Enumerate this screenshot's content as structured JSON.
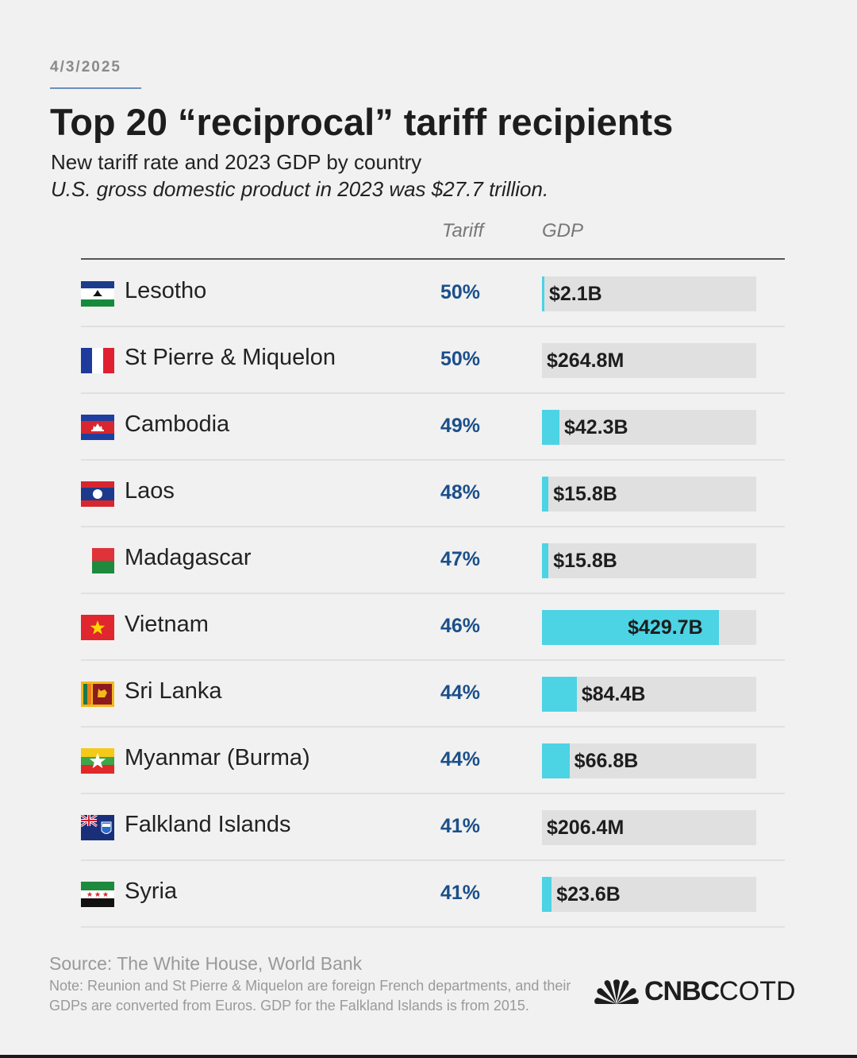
{
  "date": "4/3/2025",
  "title": "Top 20 “reciprocal” tariff recipients",
  "subtitle": "New tariff rate and 2023 GDP by country",
  "subtitle_italic": "U.S. gross domestic product in 2023 was $27.7 trillion.",
  "columns": {
    "tariff": "Tariff",
    "gdp": "GDP"
  },
  "source": "Source: The White House, World Bank",
  "note": "Note: Reunion and St Pierre & Miquelon are foreign French departments, and their GDPs are converted from Euros. GDP for the Falkland Islands is from 2015.",
  "logo": {
    "cnbc": "CNBC",
    "cotd": "COTD"
  },
  "colors": {
    "bar": "#4cd3e4",
    "track": "#e0e0e0",
    "tariff_text": "#1b4f8a"
  },
  "chart_data": {
    "type": "table",
    "bar_scale_max_billions": 520,
    "rows": [
      {
        "country": "Lesotho",
        "flag": "lesotho-flag",
        "tariff": "50%",
        "tariff_value": 50,
        "gdp": "$2.1B",
        "gdp_billions": 2.1
      },
      {
        "country": "St Pierre & Miquelon",
        "flag": "france-flag",
        "tariff": "50%",
        "tariff_value": 50,
        "gdp": "$264.8M",
        "gdp_billions": 0.2648
      },
      {
        "country": "Cambodia",
        "flag": "cambodia-flag",
        "tariff": "49%",
        "tariff_value": 49,
        "gdp": "$42.3B",
        "gdp_billions": 42.3
      },
      {
        "country": "Laos",
        "flag": "laos-flag",
        "tariff": "48%",
        "tariff_value": 48,
        "gdp": "$15.8B",
        "gdp_billions": 15.8
      },
      {
        "country": "Madagascar",
        "flag": "madagascar-flag",
        "tariff": "47%",
        "tariff_value": 47,
        "gdp": "$15.8B",
        "gdp_billions": 15.8
      },
      {
        "country": "Vietnam",
        "flag": "vietnam-flag",
        "tariff": "46%",
        "tariff_value": 46,
        "gdp": "$429.7B",
        "gdp_billions": 429.7
      },
      {
        "country": "Sri Lanka",
        "flag": "sri-lanka-flag",
        "tariff": "44%",
        "tariff_value": 44,
        "gdp": "$84.4B",
        "gdp_billions": 84.4
      },
      {
        "country": "Myanmar (Burma)",
        "flag": "myanmar-flag",
        "tariff": "44%",
        "tariff_value": 44,
        "gdp": "$66.8B",
        "gdp_billions": 66.8
      },
      {
        "country": "Falkland Islands",
        "flag": "falkland-islands-flag",
        "tariff": "41%",
        "tariff_value": 41,
        "gdp": "$206.4M",
        "gdp_billions": 0.2064
      },
      {
        "country": "Syria",
        "flag": "syria-flag",
        "tariff": "41%",
        "tariff_value": 41,
        "gdp": "$23.6B",
        "gdp_billions": 23.6
      }
    ]
  }
}
